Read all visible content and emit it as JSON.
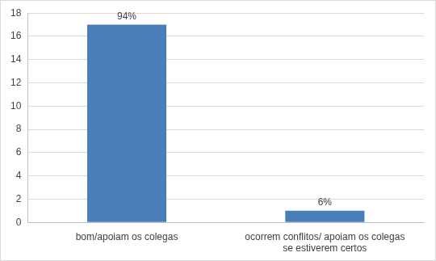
{
  "chart_data": {
    "type": "bar",
    "categories": [
      "bom/apoiam os colegas",
      "ocorrem conflitos/ apoiam os colegas se estiverem certos"
    ],
    "values": [
      17,
      1
    ],
    "value_labels": [
      "94%",
      "6%"
    ],
    "data_labels": true,
    "color": "#4a7ebb",
    "ylim": [
      0,
      18
    ],
    "yticks": [
      0,
      2,
      4,
      6,
      8,
      10,
      12,
      14,
      16,
      18
    ],
    "grid": true
  }
}
